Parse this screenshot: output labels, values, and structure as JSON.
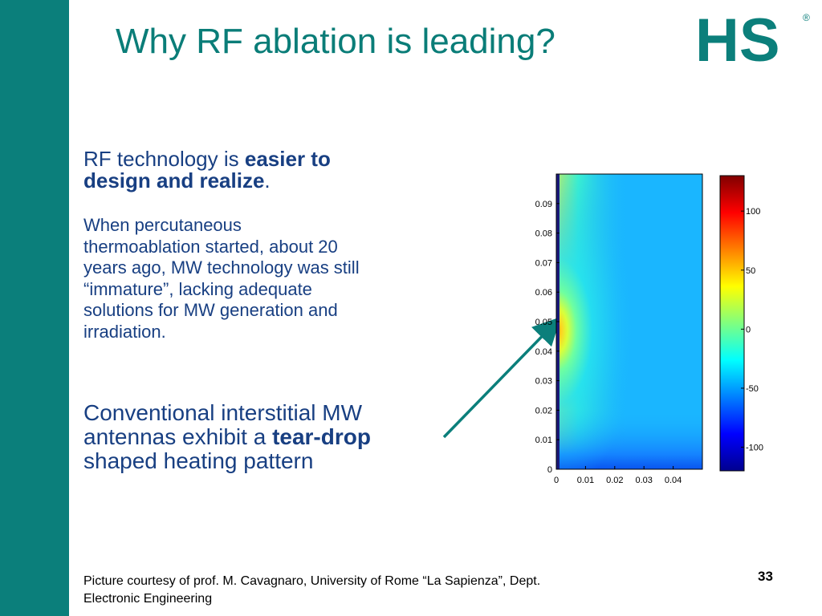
{
  "slide": {
    "title": "Why RF ablation is leading?",
    "logo_text": "HS",
    "logo_registered": "®",
    "accent_color": "#0b7f7b",
    "text_color": "#183f82",
    "paragraph1": {
      "text": "RF technology is ",
      "bold_line1": "easier to",
      "bold_line2": "design and realize",
      "suffix": "."
    },
    "paragraph2": {
      "lines": [
        "When percutaneous",
        "thermoablation started, about 20",
        "years ago, MW technology was still",
        "“immature”, lacking adequate",
        "solutions for MW generation and",
        "irradiation."
      ]
    },
    "paragraph3": {
      "line1": "Conventional interstitial MW",
      "line2_text": "antennas  exhibit a ",
      "line2_bold": "tear-drop",
      "line3": "shaped heating pattern"
    },
    "footer_line1": "Picture courtesy of prof. M. Cavagnaro, University of Rome “La Sapienza”, Dept.",
    "footer_line2": "Electronic Engineering",
    "page_number": "33"
  },
  "chart_data": {
    "type": "heatmap",
    "colormap": "jet",
    "x_ticks": [
      "0",
      "0.01",
      "0.02",
      "0.03",
      "0.04"
    ],
    "y_ticks": [
      "0",
      "0.01",
      "0.02",
      "0.03",
      "0.04",
      "0.05",
      "0.06",
      "0.07",
      "0.08",
      "0.09"
    ],
    "xlim": [
      0,
      0.05
    ],
    "ylim": [
      0,
      0.1
    ],
    "colorbar_ticks": [
      "100",
      "50",
      "0",
      "-50",
      "-100"
    ],
    "colorbar_range": [
      -120,
      130
    ]
  }
}
